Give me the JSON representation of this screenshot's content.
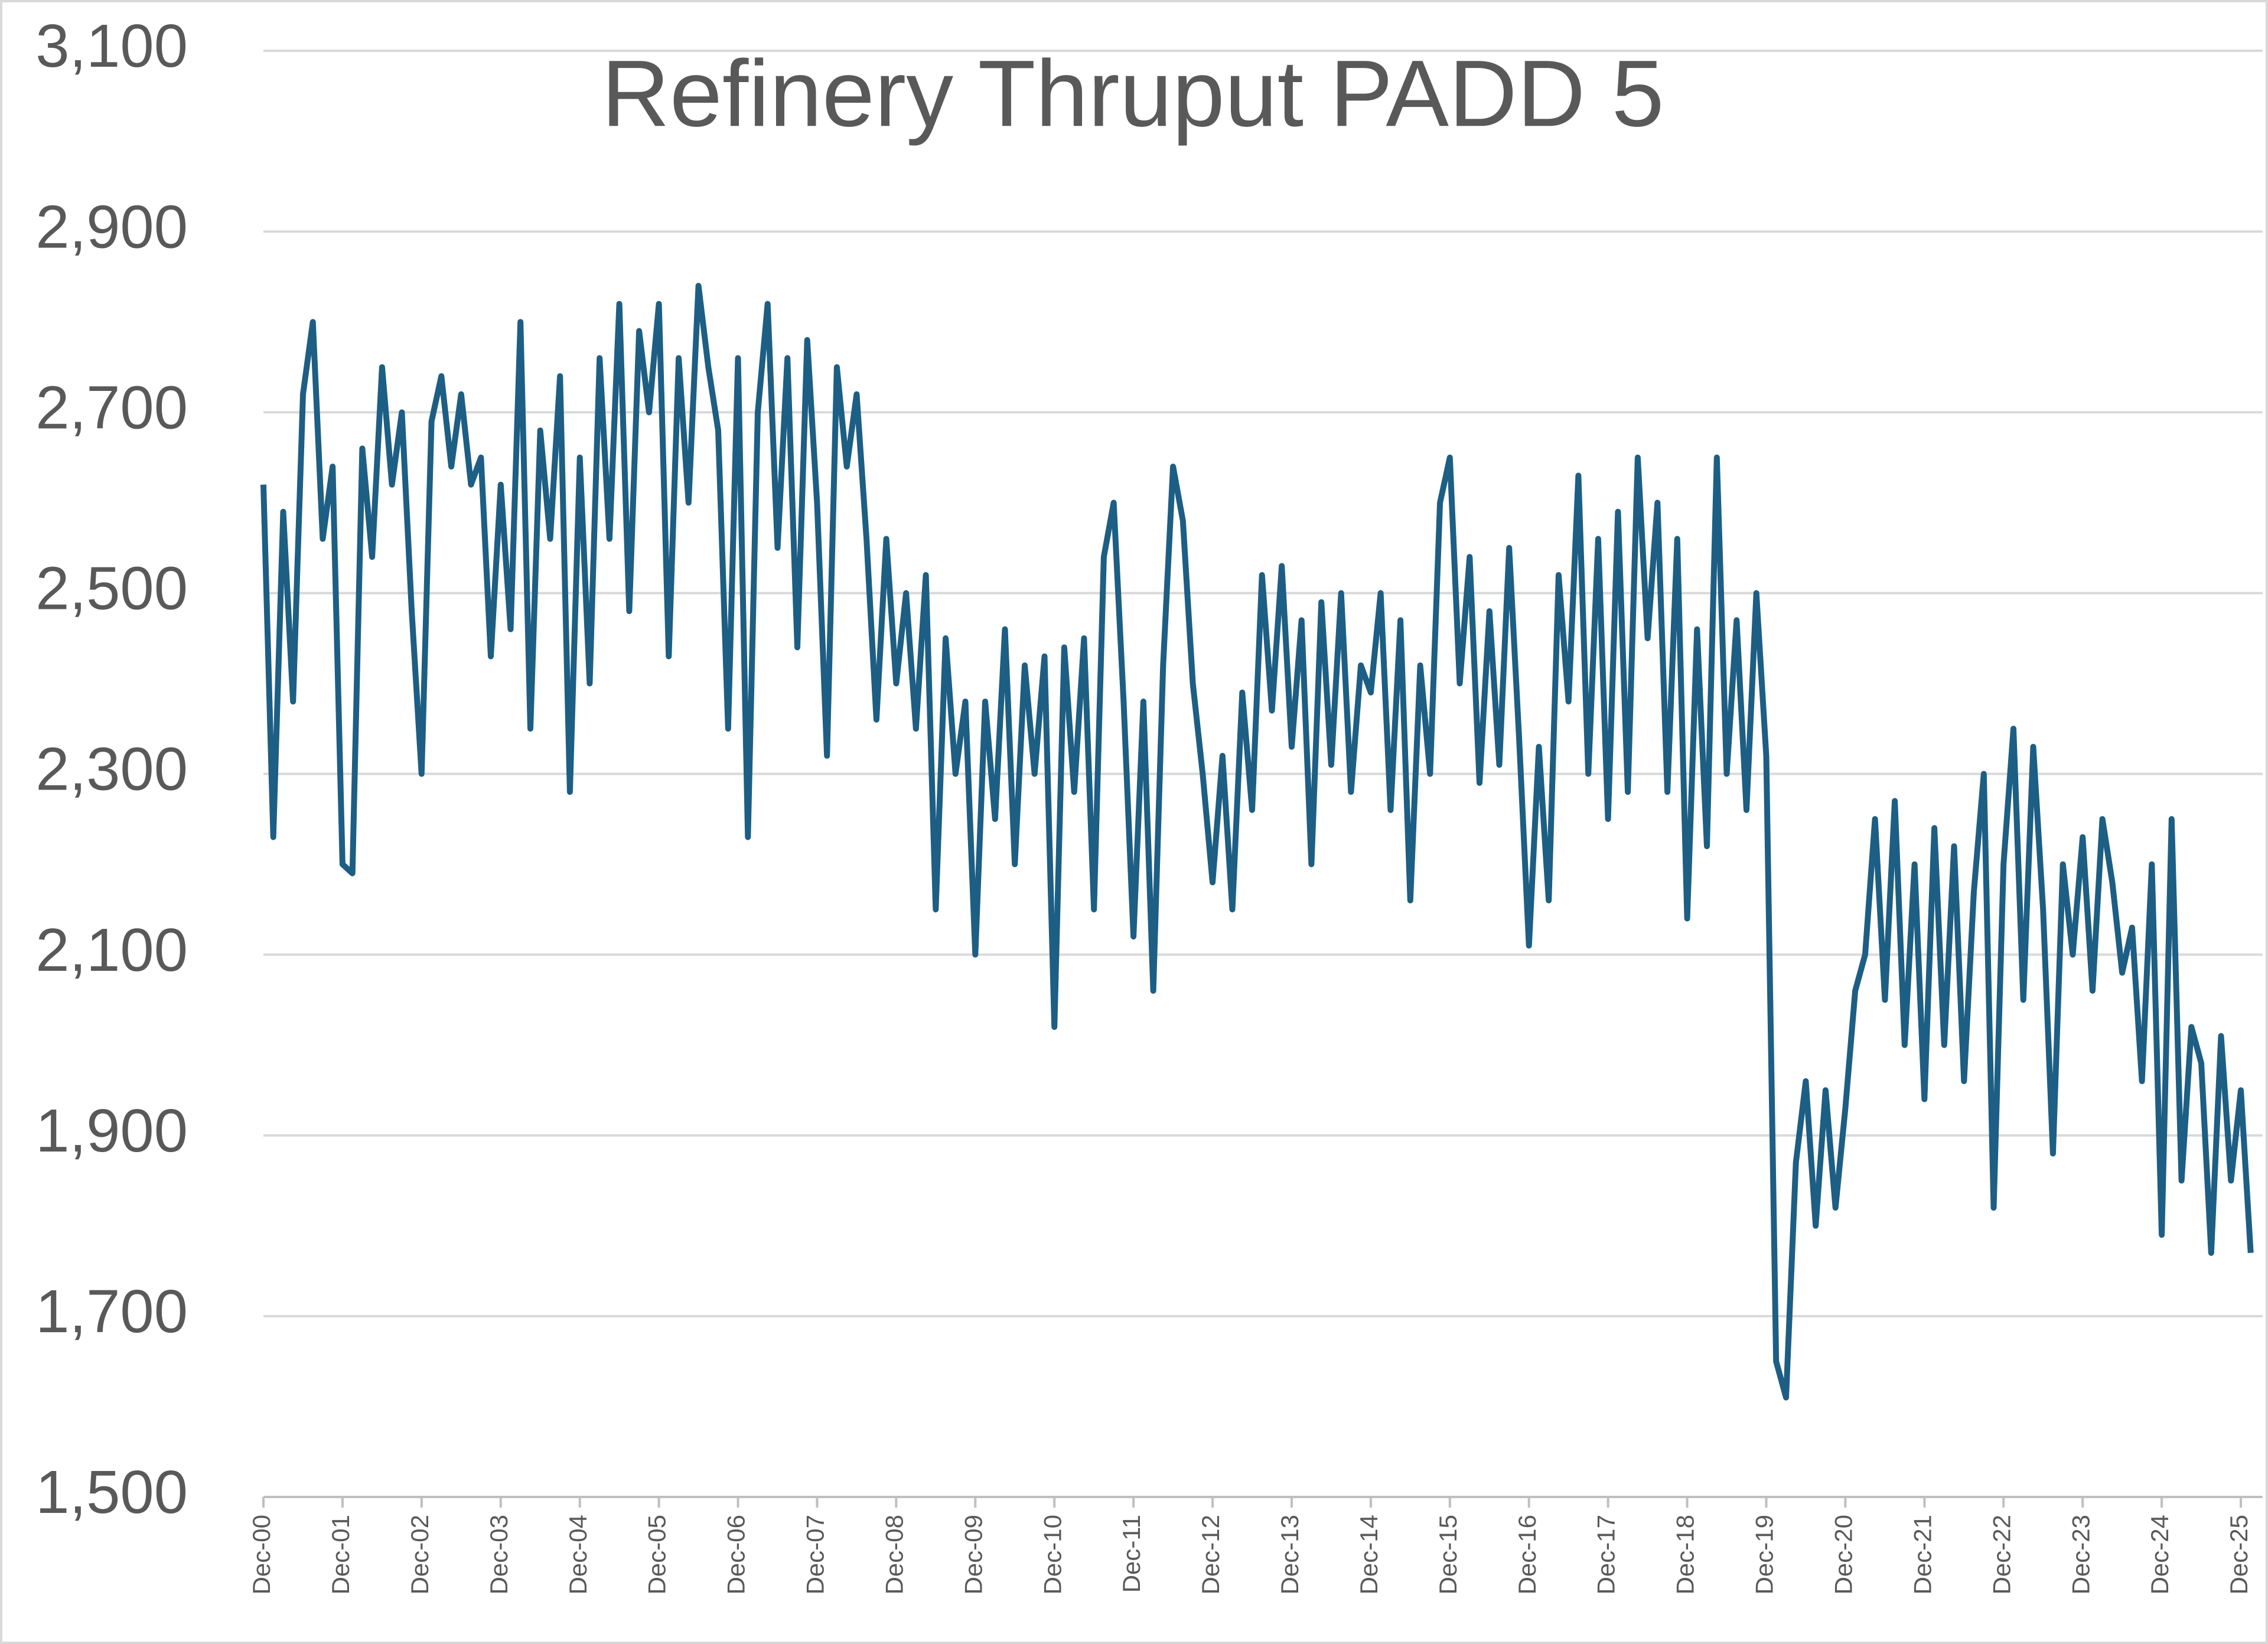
{
  "chart_data": {
    "type": "line",
    "title": "Refinery Thruput PADD 5",
    "categories": [
      "Dec-00",
      null,
      null,
      null,
      null,
      null,
      null,
      null,
      "Dec-01",
      null,
      null,
      null,
      null,
      null,
      null,
      null,
      "Dec-02",
      null,
      null,
      null,
      null,
      null,
      null,
      null,
      "Dec-03",
      null,
      null,
      null,
      null,
      null,
      null,
      null,
      "Dec-04",
      null,
      null,
      null,
      null,
      null,
      null,
      null,
      "Dec-05",
      null,
      null,
      null,
      null,
      null,
      null,
      null,
      "Dec-06",
      null,
      null,
      null,
      null,
      null,
      null,
      null,
      "Dec-07",
      null,
      null,
      null,
      null,
      null,
      null,
      null,
      "Dec-08",
      null,
      null,
      null,
      null,
      null,
      null,
      null,
      "Dec-09",
      null,
      null,
      null,
      null,
      null,
      null,
      null,
      "Dec-10",
      null,
      null,
      null,
      null,
      null,
      null,
      null,
      "Dec-11",
      null,
      null,
      null,
      null,
      null,
      null,
      null,
      "Dec-12",
      null,
      null,
      null,
      null,
      null,
      null,
      null,
      "Dec-13",
      null,
      null,
      null,
      null,
      null,
      null,
      null,
      "Dec-14",
      null,
      null,
      null,
      null,
      null,
      null,
      null,
      "Dec-15",
      null,
      null,
      null,
      null,
      null,
      null,
      null,
      "Dec-16",
      null,
      null,
      null,
      null,
      null,
      null,
      null,
      "Dec-17",
      null,
      null,
      null,
      null,
      null,
      null,
      null,
      "Dec-18",
      null,
      null,
      null,
      null,
      null,
      null,
      null,
      "Dec-19",
      null,
      null,
      null,
      null,
      null,
      null,
      null,
      "Dec-20",
      null,
      null,
      null,
      null,
      null,
      null,
      null,
      "Dec-21",
      null,
      null,
      null,
      null,
      null,
      null,
      null,
      "Dec-22",
      null,
      null,
      null,
      null,
      null,
      null,
      null,
      "Dec-23",
      null,
      null,
      null,
      null,
      null,
      null,
      null,
      "Dec-24",
      null,
      null,
      null,
      null,
      null,
      null,
      null,
      "Dec-25",
      null
    ],
    "values": [
      2620,
      2230,
      2590,
      2380,
      2720,
      2800,
      2560,
      2640,
      2200,
      2190,
      2660,
      2540,
      2750,
      2620,
      2700,
      2480,
      2300,
      2690,
      2740,
      2640,
      2720,
      2620,
      2650,
      2430,
      2620,
      2460,
      2800,
      2350,
      2680,
      2560,
      2740,
      2280,
      2650,
      2400,
      2760,
      2560,
      2820,
      2480,
      2790,
      2700,
      2820,
      2430,
      2760,
      2600,
      2840,
      2750,
      2680,
      2350,
      2760,
      2230,
      2700,
      2820,
      2550,
      2760,
      2440,
      2780,
      2600,
      2320,
      2750,
      2640,
      2720,
      2560,
      2360,
      2560,
      2400,
      2500,
      2350,
      2520,
      2150,
      2450,
      2300,
      2380,
      2100,
      2380,
      2250,
      2460,
      2200,
      2420,
      2300,
      2430,
      2020,
      2440,
      2280,
      2450,
      2150,
      2540,
      2600,
      2380,
      2120,
      2380,
      2060,
      2420,
      2640,
      2580,
      2400,
      2300,
      2180,
      2320,
      2150,
      2390,
      2260,
      2520,
      2370,
      2530,
      2330,
      2470,
      2200,
      2490,
      2310,
      2500,
      2280,
      2420,
      2390,
      2500,
      2260,
      2470,
      2160,
      2420,
      2300,
      2600,
      2650,
      2400,
      2540,
      2290,
      2480,
      2310,
      2550,
      2340,
      2110,
      2330,
      2160,
      2520,
      2380,
      2630,
      2300,
      2560,
      2250,
      2590,
      2280,
      2650,
      2450,
      2600,
      2280,
      2560,
      2140,
      2460,
      2220,
      2650,
      2300,
      2470,
      2260,
      2500,
      2320,
      1650,
      1610,
      1870,
      1960,
      1800,
      1950,
      1820,
      1930,
      2060,
      2100,
      2250,
      2050,
      2270,
      2000,
      2200,
      1940,
      2240,
      2000,
      2220,
      1960,
      2170,
      2300,
      1820,
      2200,
      2350,
      2050,
      2330,
      2150,
      1880,
      2200,
      2100,
      2230,
      2060,
      2250,
      2180,
      2080,
      2130,
      1960,
      2200,
      1790,
      2250,
      1850,
      2020,
      1980,
      1770,
      2010,
      1850,
      1950,
      1770
    ],
    "color": "#1d5e84",
    "ylim": [
      1500,
      3100
    ],
    "yticks": [
      {
        "value": 1500,
        "label": "1,500"
      },
      {
        "value": 1700,
        "label": "1,700"
      },
      {
        "value": 1900,
        "label": "1,900"
      },
      {
        "value": 2100,
        "label": "2,100"
      },
      {
        "value": 2300,
        "label": "2,300"
      },
      {
        "value": 2500,
        "label": "2,500"
      },
      {
        "value": 2700,
        "label": "2,700"
      },
      {
        "value": 2900,
        "label": "2,900"
      },
      {
        "value": 3100,
        "label": "3,100"
      }
    ],
    "grid": true
  }
}
